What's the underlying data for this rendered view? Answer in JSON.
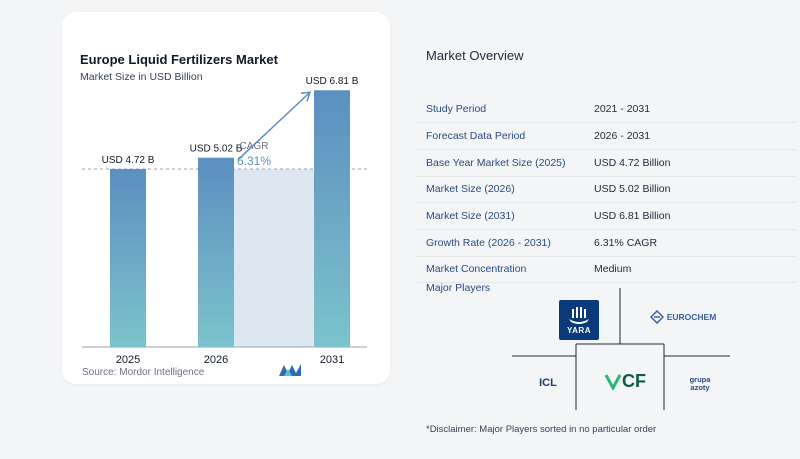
{
  "chart_data": {
    "type": "bar",
    "title": "Europe Liquid Fertilizers Market",
    "subtitle": "Market Size in USD Billion",
    "categories": [
      "2025",
      "2026",
      "2031"
    ],
    "values": [
      4.72,
      5.02,
      6.81
    ],
    "data_labels": [
      "USD 4.72 B",
      "USD 5.02 B",
      "USD 6.81 B"
    ],
    "annotation": {
      "label": "CAGR",
      "value": "6.31%"
    },
    "ylim": [
      0,
      7.4
    ],
    "grid": false,
    "reference_line_value": 4.72,
    "colors": {
      "bar_top": "#5b8fc0",
      "bar_bottom": "#7cc3cc",
      "area": "#dde7f2",
      "line": "#5b8fc0",
      "axis": "#9ca3af"
    }
  },
  "source": "Source:  Mordor Intelligence",
  "overview": {
    "title": "Market Overview",
    "rows": [
      {
        "label": "Study Period",
        "value": "2021 - 2031"
      },
      {
        "label": "Forecast Data Period",
        "value": "2026 - 2031"
      },
      {
        "label": "Base Year Market Size (2025)",
        "value": "USD 4.72 Billion"
      },
      {
        "label": "Market Size (2026)",
        "value": "USD 5.02 Billion"
      },
      {
        "label": "Market Size (2031)",
        "value": "USD 6.81 Billion"
      },
      {
        "label": "Growth Rate (2026 - 2031)",
        "value": "6.31% CAGR"
      },
      {
        "label": "Market Concentration",
        "value": "Medium"
      }
    ],
    "players_title": "Major Players",
    "players": {
      "yara": "YARA",
      "eurochem": "EUROCHEM",
      "icl": "ICL",
      "cf": "CF",
      "grupa_line1": "grupa",
      "grupa_line2": "azoty"
    },
    "disclaimer": "*Disclaimer: Major Players sorted in no particular order"
  }
}
